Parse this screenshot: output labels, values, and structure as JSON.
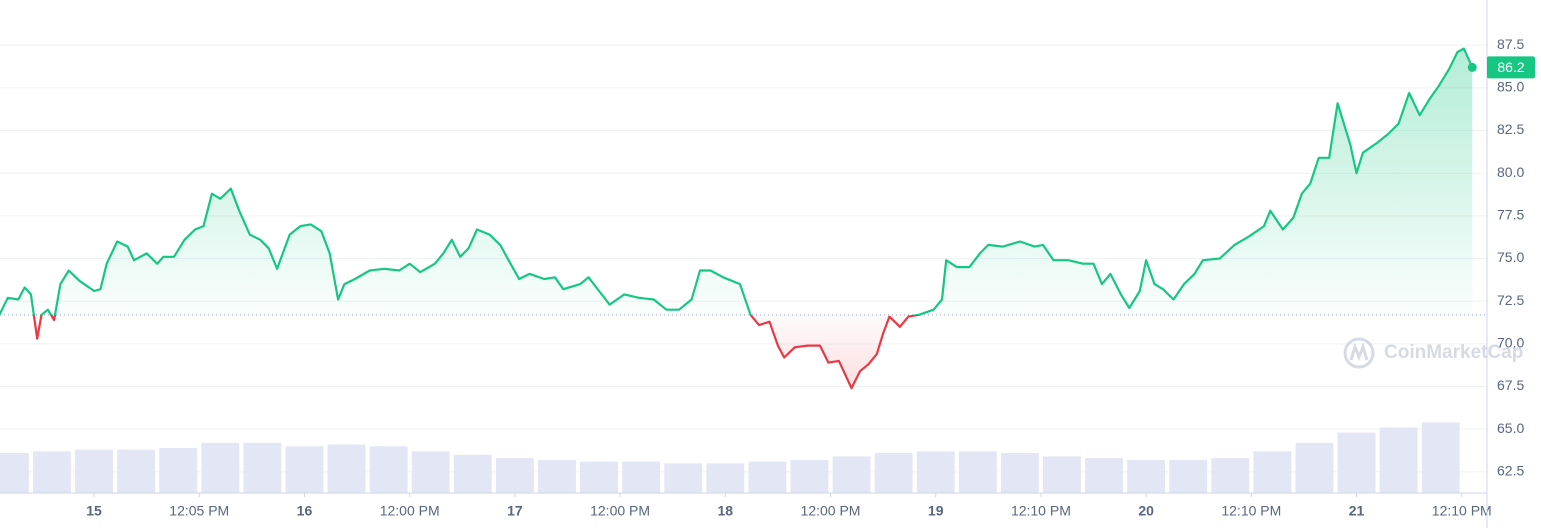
{
  "chart_data": {
    "type": "line",
    "x": [
      14.55,
      14.59,
      14.64,
      14.67,
      14.7,
      14.73,
      14.75,
      14.78,
      14.81,
      14.84,
      14.88,
      14.93,
      15.0,
      15.03,
      15.06,
      15.11,
      15.16,
      15.19,
      15.25,
      15.3,
      15.33,
      15.38,
      15.43,
      15.48,
      15.52,
      15.56,
      15.6,
      15.65,
      15.69,
      15.74,
      15.79,
      15.83,
      15.87,
      15.93,
      15.98,
      16.03,
      16.08,
      16.12,
      16.16,
      16.19,
      16.24,
      16.31,
      16.38,
      16.45,
      16.5,
      16.55,
      16.62,
      16.66,
      16.7,
      16.74,
      16.78,
      16.82,
      16.88,
      16.93,
      16.97,
      17.02,
      17.07,
      17.14,
      17.19,
      17.23,
      17.31,
      17.35,
      17.4,
      17.45,
      17.52,
      17.59,
      17.66,
      17.72,
      17.78,
      17.84,
      17.88,
      17.93,
      17.99,
      18.07,
      18.12,
      18.16,
      18.21,
      18.25,
      18.28,
      18.33,
      18.39,
      18.45,
      18.49,
      18.54,
      18.6,
      18.64,
      18.68,
      18.72,
      18.75,
      18.78,
      18.83,
      18.87,
      18.92,
      18.99,
      19.03,
      19.05,
      19.1,
      19.16,
      19.21,
      19.25,
      19.32,
      19.4,
      19.47,
      19.51,
      19.56,
      19.63,
      19.7,
      19.75,
      19.79,
      19.83,
      19.88,
      19.92,
      19.97,
      20.0,
      20.04,
      20.08,
      20.13,
      20.18,
      20.23,
      20.27,
      20.35,
      20.42,
      20.49,
      20.56,
      20.59,
      20.65,
      20.7,
      20.74,
      20.78,
      20.82,
      20.87,
      20.91,
      20.94,
      20.97,
      21.0,
      21.03,
      21.1,
      21.15,
      21.2,
      21.25,
      21.3,
      21.35,
      21.39,
      21.44,
      21.48,
      21.51,
      21.55
    ],
    "series": [
      {
        "color": "#16c784",
        "below_color": "#ea3943",
        "values": [
          71.7,
          72.7,
          72.6,
          73.3,
          72.9,
          70.3,
          71.7,
          72.0,
          71.4,
          73.5,
          74.3,
          73.7,
          73.1,
          73.2,
          74.7,
          76.0,
          75.7,
          74.9,
          75.3,
          74.7,
          75.1,
          75.1,
          76.1,
          76.7,
          76.9,
          78.8,
          78.5,
          79.1,
          77.8,
          76.4,
          76.1,
          75.6,
          74.4,
          76.4,
          76.9,
          77.0,
          76.6,
          75.3,
          72.6,
          73.5,
          73.8,
          74.3,
          74.4,
          74.3,
          74.7,
          74.2,
          74.7,
          75.3,
          76.1,
          75.1,
          75.6,
          76.7,
          76.4,
          75.8,
          74.9,
          73.8,
          74.1,
          73.8,
          73.9,
          73.2,
          73.5,
          73.9,
          73.1,
          72.3,
          72.9,
          72.7,
          72.6,
          72.0,
          72.0,
          72.6,
          74.3,
          74.3,
          73.9,
          73.5,
          71.7,
          71.1,
          71.3,
          69.9,
          69.2,
          69.8,
          69.9,
          69.9,
          68.9,
          69.0,
          67.4,
          68.4,
          68.8,
          69.4,
          70.6,
          71.6,
          71.0,
          71.6,
          71.7,
          72.0,
          72.6,
          74.9,
          74.5,
          74.5,
          75.3,
          75.8,
          75.7,
          76.0,
          75.7,
          75.8,
          74.9,
          74.9,
          74.7,
          74.7,
          73.5,
          74.1,
          72.9,
          72.1,
          73.1,
          74.9,
          73.5,
          73.2,
          72.6,
          73.5,
          74.1,
          74.9,
          75.0,
          75.8,
          76.3,
          76.9,
          77.8,
          76.7,
          77.4,
          78.8,
          79.4,
          80.9,
          80.9,
          84.1,
          82.9,
          81.7,
          80.0,
          81.2,
          81.8,
          82.3,
          82.9,
          84.7,
          83.4,
          84.4,
          85.1,
          86.1,
          87.1,
          87.3,
          86.2
        ]
      }
    ],
    "reference": 71.7,
    "current_price": 86.2,
    "volume": {
      "color": "#e3e6f4",
      "x": [
        14.6,
        14.8,
        15.0,
        15.2,
        15.4,
        15.6,
        15.8,
        16.0,
        16.2,
        16.4,
        16.6,
        16.8,
        17.0,
        17.2,
        17.4,
        17.6,
        17.8,
        18.0,
        18.2,
        18.4,
        18.6,
        18.8,
        19.0,
        19.2,
        19.4,
        19.6,
        19.8,
        20.0,
        20.2,
        20.4,
        20.6,
        20.8,
        21.0,
        21.2,
        21.4
      ],
      "values": [
        63.6,
        63.7,
        63.8,
        63.8,
        63.9,
        64.2,
        64.2,
        64.0,
        64.1,
        64.0,
        63.7,
        63.5,
        63.3,
        63.2,
        63.1,
        63.1,
        63.0,
        63.0,
        63.1,
        63.2,
        63.4,
        63.6,
        63.7,
        63.7,
        63.6,
        63.4,
        63.3,
        63.2,
        63.2,
        63.3,
        63.7,
        64.2,
        64.8,
        65.1,
        65.4
      ]
    },
    "xlim": [
      14.553,
      21.62
    ],
    "ylim": [
      61.26,
      90.15
    ],
    "xticks": [
      15,
      {
        "value": 15.5,
        "label": "12:05 PM"
      },
      16,
      {
        "value": 16.5,
        "label": "12:00 PM"
      },
      17,
      {
        "value": 17.5,
        "label": "12:00 PM"
      },
      18,
      {
        "value": 18.5,
        "label": "12:00 PM"
      },
      19,
      {
        "value": 19.5,
        "label": "12:10 PM"
      },
      20,
      {
        "value": 20.5,
        "label": "12:10 PM"
      },
      21,
      {
        "value": 21.5,
        "label": "12:10 PM"
      }
    ],
    "yticks": [
      62.5,
      {
        "value": 65,
        "label": "65.0"
      },
      67.5,
      {
        "value": 70,
        "label": "70.0"
      },
      72.5,
      {
        "value": 75,
        "label": "75.0"
      },
      77.5,
      {
        "value": 80,
        "label": "80.0"
      },
      82.5,
      {
        "value": 85,
        "label": "85.0"
      },
      87.5
    ],
    "grid": true,
    "watermark": "CoinMarketCap"
  }
}
